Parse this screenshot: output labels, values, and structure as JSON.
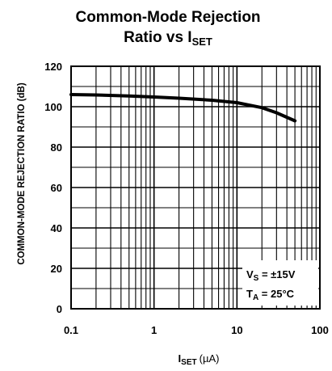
{
  "chart_data": {
    "type": "line",
    "title_line1": "Common-Mode Rejection",
    "title_line2_main": "Ratio vs I",
    "title_line2_sub": "SET",
    "ylabel": "COMMON-MODE REJECTION RATIO (dB)",
    "xlabel_main": "I",
    "xlabel_sub": "SET",
    "xlabel_unit": "(µA)",
    "x_scale": "log",
    "xlim": [
      0.1,
      100
    ],
    "ylim": [
      0,
      120
    ],
    "xticks": [
      {
        "value": 0.1,
        "label": "0.1"
      },
      {
        "value": 1,
        "label": "1"
      },
      {
        "value": 10,
        "label": "10"
      },
      {
        "value": 100,
        "label": "100"
      }
    ],
    "yticks": [
      {
        "value": 0,
        "label": "0"
      },
      {
        "value": 20,
        "label": "20"
      },
      {
        "value": 40,
        "label": "40"
      },
      {
        "value": 60,
        "label": "60"
      },
      {
        "value": 80,
        "label": "80"
      },
      {
        "value": 100,
        "label": "100"
      },
      {
        "value": 120,
        "label": "120"
      }
    ],
    "grid": true,
    "series": [
      {
        "color": "#000000",
        "x": [
          0.1,
          0.2,
          0.5,
          1,
          2,
          5,
          10,
          20,
          30,
          50
        ],
        "y": [
          106,
          105.8,
          105.3,
          104.8,
          104.2,
          103.2,
          102,
          99.5,
          97,
          93
        ]
      }
    ],
    "annotations": {
      "vs_main": "V",
      "vs_sub": "S",
      "vs_value": " = ±15V",
      "ta_main": "T",
      "ta_sub": "A",
      "ta_value": " = 25°C"
    }
  }
}
